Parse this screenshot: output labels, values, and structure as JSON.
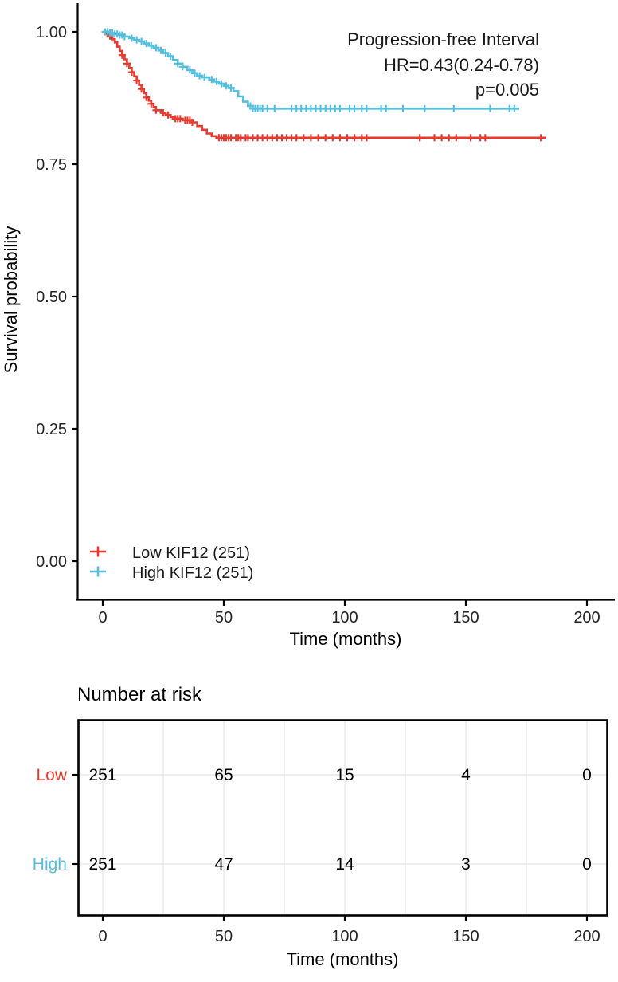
{
  "colors": {
    "low": "#E8392F",
    "high": "#54BEDC",
    "grid": "#E8E8E8",
    "axis": "#000000",
    "tick_label": "#262626"
  },
  "main_plot": {
    "y_axis_title": "Survival probability",
    "x_axis_title": "Time (months)",
    "y_ticks": [
      "1.00",
      "0.75",
      "0.50",
      "0.25",
      "0.00"
    ],
    "x_ticks": [
      "0",
      "50",
      "100",
      "150",
      "200"
    ],
    "annotation": {
      "line1": "Progression-free Interval",
      "line2": "HR=0.43(0.24-0.78)",
      "line3": "p=0.005"
    },
    "legend": [
      {
        "label": "Low KIF12 (251)",
        "color_key": "low"
      },
      {
        "label": "High KIF12 (251)",
        "color_key": "high"
      }
    ]
  },
  "risk_table": {
    "title": "Number at risk",
    "x_axis_title": "Time (months)",
    "x_ticks": [
      "0",
      "50",
      "100",
      "150",
      "200"
    ],
    "rows": [
      {
        "label": "Low",
        "color_key": "low",
        "values": [
          "251",
          "65",
          "15",
          "4",
          "0"
        ]
      },
      {
        "label": "High",
        "color_key": "high",
        "values": [
          "251",
          "47",
          "14",
          "3",
          "0"
        ]
      }
    ]
  },
  "chart_data": {
    "type": "line",
    "subtype": "kaplan-meier-step",
    "title": "Progression-free Interval",
    "hr_annotation": "HR=0.43(0.24-0.78)",
    "p_value": "p=0.005",
    "xlabel": "Time (months)",
    "ylabel": "Survival probability",
    "xlim": [
      0,
      200
    ],
    "ylim": [
      0,
      1
    ],
    "xticks": [
      0,
      50,
      100,
      150,
      200
    ],
    "yticks": [
      1.0,
      0.75,
      0.5,
      0.25,
      0.0
    ],
    "grid": false,
    "legend_position": "bottom-left-inside",
    "series": [
      {
        "name": "Low KIF12 (251)",
        "color": "#E8392F",
        "steps": [
          [
            0,
            1.0
          ],
          [
            2,
            0.996
          ],
          [
            3,
            0.992
          ],
          [
            4,
            0.986
          ],
          [
            5,
            0.98
          ],
          [
            6,
            0.972
          ],
          [
            7,
            0.964
          ],
          [
            8,
            0.956
          ],
          [
            9,
            0.948
          ],
          [
            10,
            0.94
          ],
          [
            11,
            0.932
          ],
          [
            12,
            0.924
          ],
          [
            13,
            0.916
          ],
          [
            14,
            0.908
          ],
          [
            15,
            0.9
          ],
          [
            16,
            0.892
          ],
          [
            17,
            0.884
          ],
          [
            18,
            0.876
          ],
          [
            19,
            0.87
          ],
          [
            20,
            0.864
          ],
          [
            21,
            0.858
          ],
          [
            22,
            0.852
          ],
          [
            24,
            0.847
          ],
          [
            26,
            0.843
          ],
          [
            28,
            0.839
          ],
          [
            30,
            0.836
          ],
          [
            33,
            0.833
          ],
          [
            37,
            0.829
          ],
          [
            39,
            0.822
          ],
          [
            41,
            0.815
          ],
          [
            43,
            0.808
          ],
          [
            45,
            0.803
          ],
          [
            47,
            0.8
          ],
          [
            183,
            0.8
          ]
        ],
        "censor_times": [
          1,
          2,
          3,
          8,
          10,
          12,
          14,
          16,
          18,
          20,
          22,
          25,
          27,
          30,
          31,
          32,
          34,
          35,
          36,
          37,
          48,
          49,
          50,
          51,
          52,
          53,
          55,
          56,
          57,
          59,
          60,
          62,
          64,
          66,
          68,
          70,
          72,
          74,
          76,
          78,
          80,
          83,
          86,
          89,
          92,
          95,
          98,
          101,
          104,
          107,
          109,
          131,
          137,
          140,
          143,
          146,
          152,
          156,
          158,
          181
        ]
      },
      {
        "name": "High KIF12 (251)",
        "color": "#54BEDC",
        "steps": [
          [
            0,
            1.0
          ],
          [
            3,
            0.998
          ],
          [
            5,
            0.996
          ],
          [
            7,
            0.994
          ],
          [
            9,
            0.991
          ],
          [
            11,
            0.988
          ],
          [
            13,
            0.985
          ],
          [
            15,
            0.982
          ],
          [
            17,
            0.978
          ],
          [
            19,
            0.974
          ],
          [
            21,
            0.97
          ],
          [
            23,
            0.965
          ],
          [
            25,
            0.96
          ],
          [
            27,
            0.954
          ],
          [
            29,
            0.947
          ],
          [
            31,
            0.94
          ],
          [
            33,
            0.934
          ],
          [
            35,
            0.928
          ],
          [
            37,
            0.922
          ],
          [
            39,
            0.917
          ],
          [
            41,
            0.914
          ],
          [
            44,
            0.91
          ],
          [
            46,
            0.906
          ],
          [
            48,
            0.902
          ],
          [
            50,
            0.898
          ],
          [
            52,
            0.894
          ],
          [
            54,
            0.888
          ],
          [
            56,
            0.878
          ],
          [
            58,
            0.868
          ],
          [
            60,
            0.86
          ],
          [
            62,
            0.855
          ],
          [
            172,
            0.855
          ]
        ],
        "censor_times": [
          1,
          2,
          3,
          4,
          5,
          6,
          7,
          8,
          9,
          12,
          14,
          16,
          18,
          20,
          22,
          24,
          26,
          28,
          31,
          33,
          36,
          38,
          40,
          42,
          45,
          47,
          49,
          51,
          53,
          61,
          62,
          63,
          64,
          65,
          66,
          68,
          71,
          78,
          80,
          82,
          84,
          86,
          88,
          90,
          92,
          94,
          96,
          98,
          102,
          104,
          107,
          109,
          115,
          117,
          124,
          133,
          145,
          160,
          168,
          170
        ]
      }
    ],
    "number_at_risk": {
      "times": [
        0,
        50,
        100,
        150,
        200
      ],
      "Low": [
        251,
        65,
        15,
        4,
        0
      ],
      "High": [
        251,
        47,
        14,
        3,
        0
      ]
    }
  }
}
